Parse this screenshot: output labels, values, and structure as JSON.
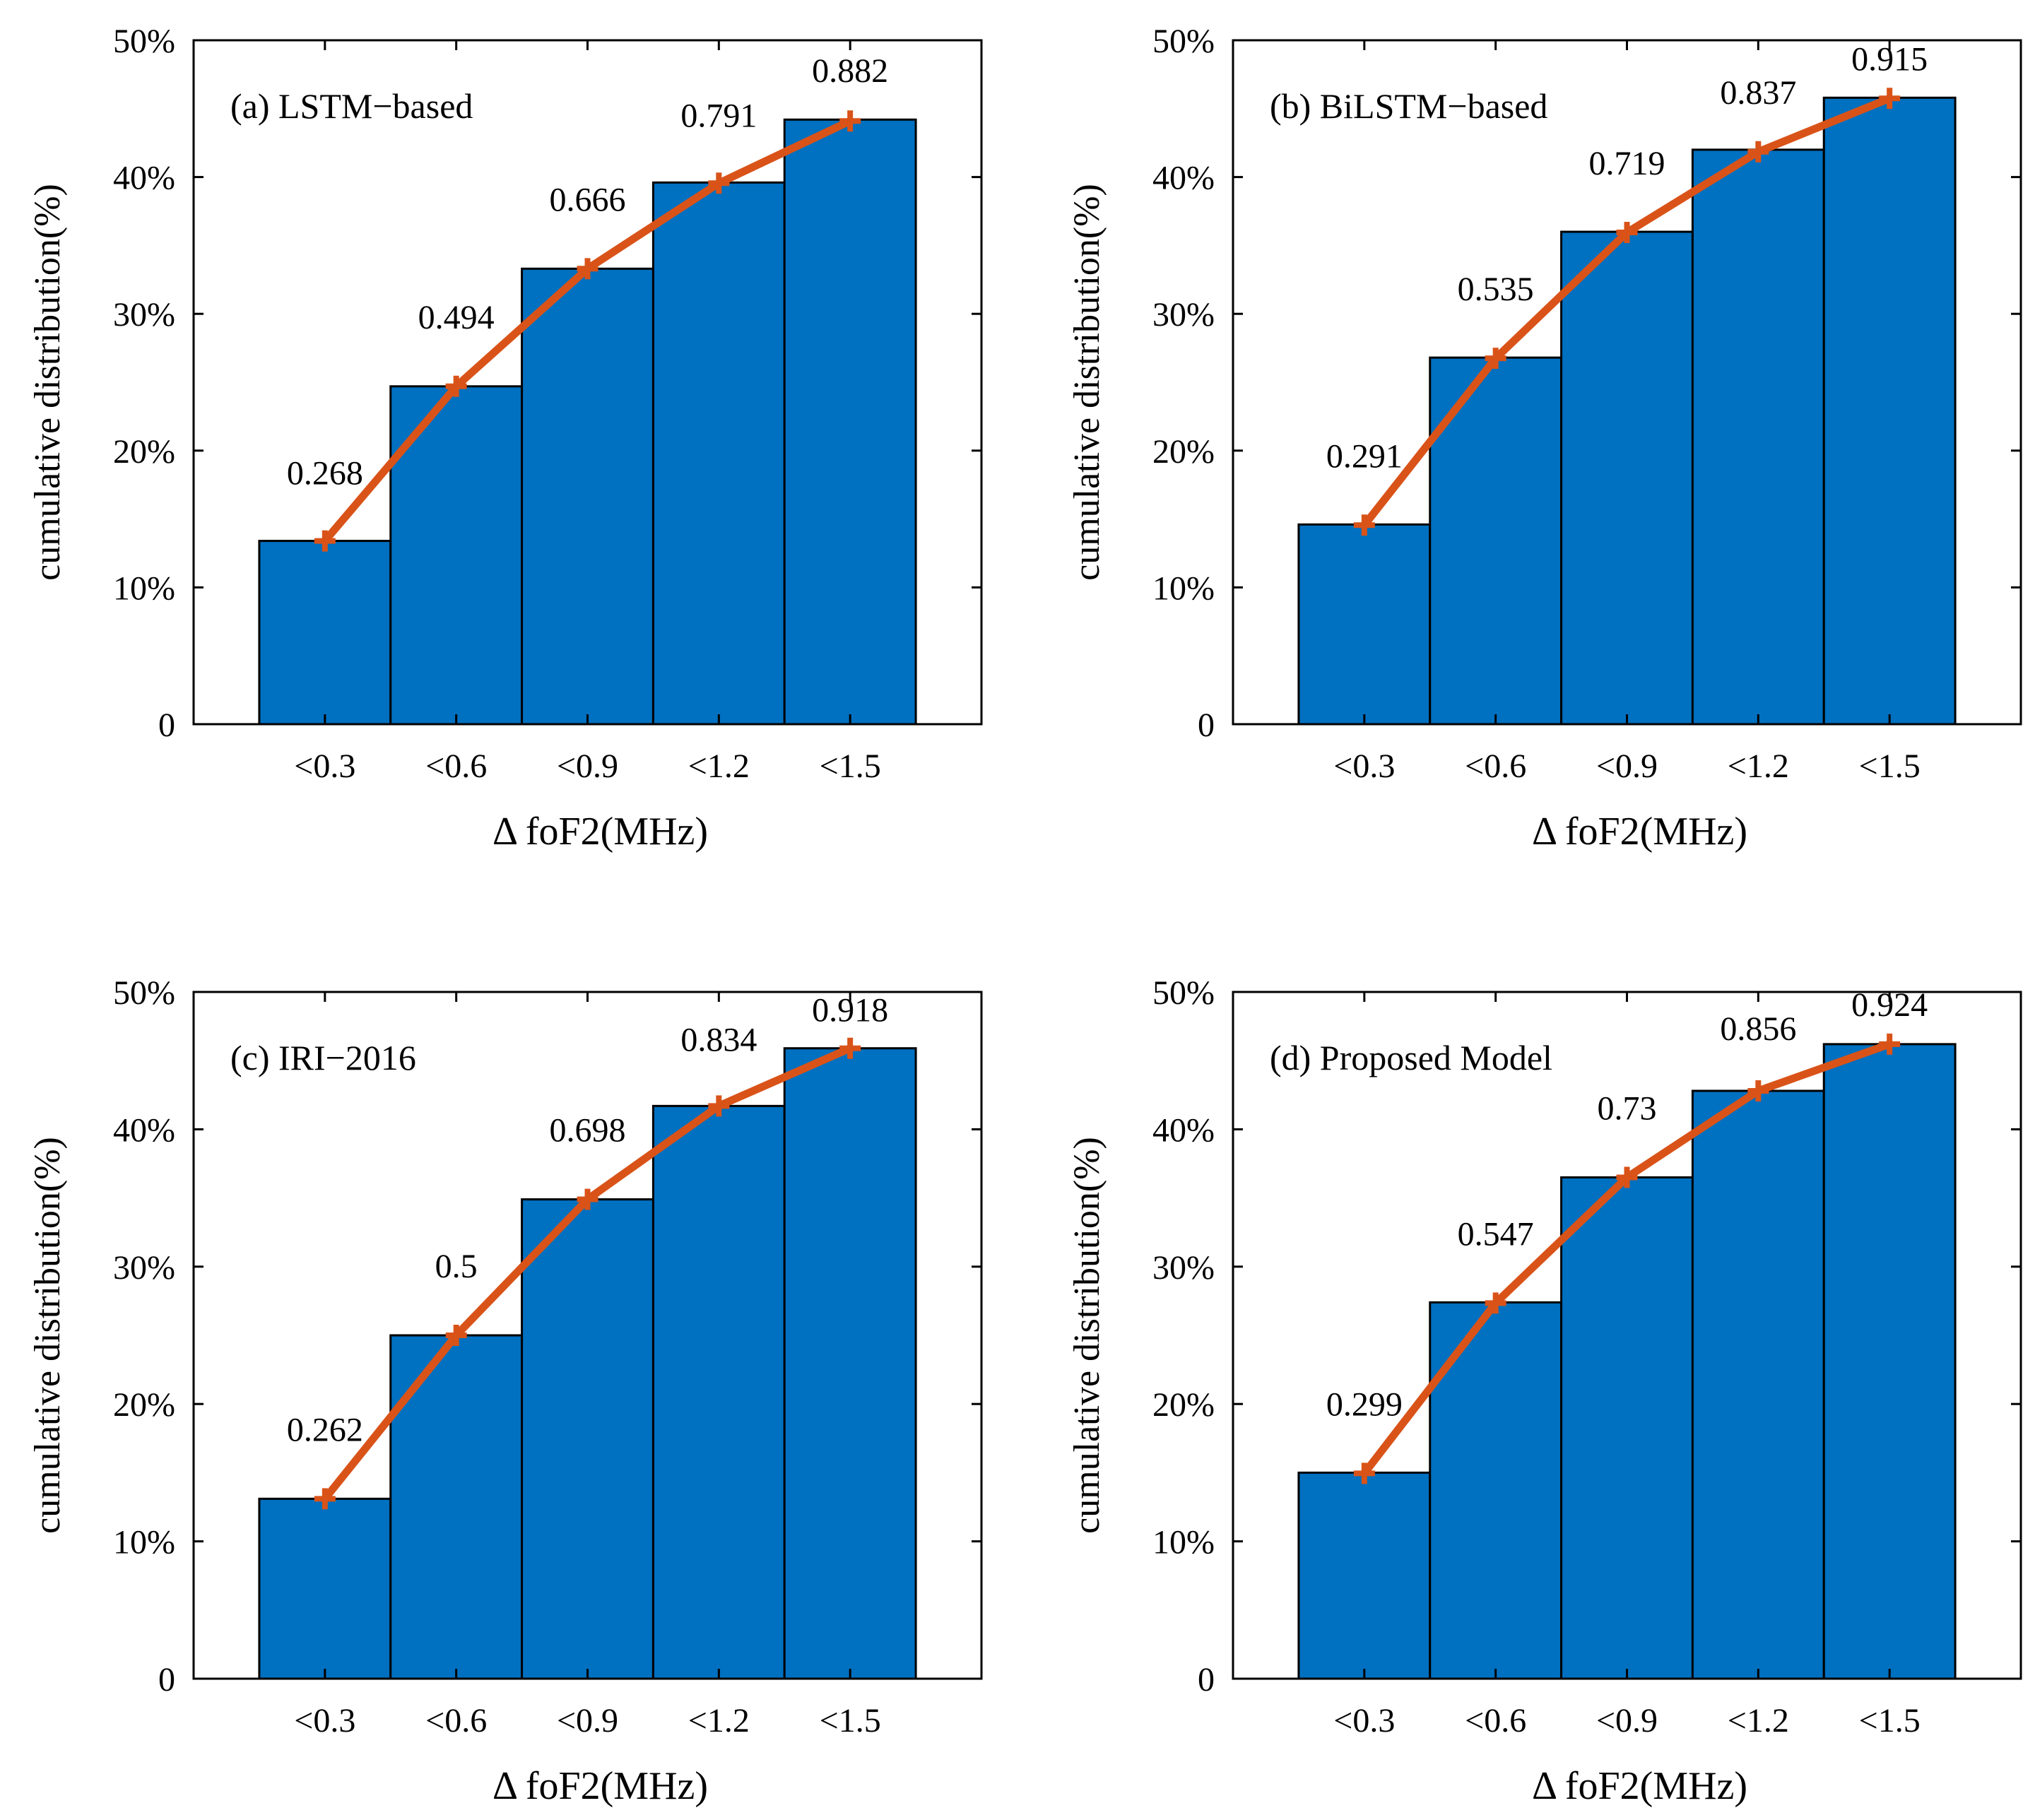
{
  "chart_data": [
    {
      "type": "bar",
      "title": "(a) LSTM−based",
      "categories": [
        "<0.3",
        "<0.6",
        "<0.9",
        "<1.2",
        "<1.5"
      ],
      "values": [
        13.4,
        24.7,
        33.3,
        39.6,
        44.2
      ],
      "series_line": {
        "name": "cumulative",
        "values": [
          13.4,
          24.7,
          33.3,
          39.55,
          44.1
        ]
      },
      "labels": [
        "0.268",
        "0.494",
        "0.666",
        "0.791",
        "0.882"
      ],
      "xlabel": "Δ foF2(MHz)",
      "ylabel": "cumulative distribution(%)",
      "ylim": [
        0,
        50
      ],
      "yticks": [
        "0",
        "10%",
        "20%",
        "30%",
        "40%",
        "50%"
      ]
    },
    {
      "type": "bar",
      "title": "(b) BiLSTM−based",
      "categories": [
        "<0.3",
        "<0.6",
        "<0.9",
        "<1.2",
        "<1.5"
      ],
      "values": [
        14.6,
        26.8,
        36.0,
        42.0,
        45.8
      ],
      "series_line": {
        "name": "cumulative",
        "values": [
          14.55,
          26.75,
          35.95,
          41.85,
          45.75
        ]
      },
      "labels": [
        "0.291",
        "0.535",
        "0.719",
        "0.837",
        "0.915"
      ],
      "xlabel": "Δ foF2(MHz)",
      "ylabel": "cumulative distribution(%)",
      "ylim": [
        0,
        50
      ],
      "yticks": [
        "0",
        "10%",
        "20%",
        "30%",
        "40%",
        "50%"
      ]
    },
    {
      "type": "bar",
      "title": "(c) IRI−2016",
      "categories": [
        "<0.3",
        "<0.6",
        "<0.9",
        "<1.2",
        "<1.5"
      ],
      "values": [
        13.1,
        25.0,
        34.9,
        41.7,
        45.9
      ],
      "series_line": {
        "name": "cumulative",
        "values": [
          13.1,
          25.0,
          34.9,
          41.7,
          45.9
        ]
      },
      "labels": [
        "0.262",
        "0.5",
        "0.698",
        "0.834",
        "0.918"
      ],
      "xlabel": "Δ foF2(MHz)",
      "ylabel": "cumulative distribution(%)",
      "ylim": [
        0,
        50
      ],
      "yticks": [
        "0",
        "10%",
        "20%",
        "30%",
        "40%",
        "50%"
      ]
    },
    {
      "type": "bar",
      "title": "(d) Proposed Model",
      "categories": [
        "<0.3",
        "<0.6",
        "<0.9",
        "<1.2",
        "<1.5"
      ],
      "values": [
        15.0,
        27.4,
        36.5,
        42.8,
        46.2
      ],
      "series_line": {
        "name": "cumulative",
        "values": [
          14.95,
          27.35,
          36.5,
          42.8,
          46.2
        ]
      },
      "labels": [
        "0.299",
        "0.547",
        "0.73",
        "0.856",
        "0.924"
      ],
      "xlabel": "Δ foF2(MHz)",
      "ylabel": "cumulative distribution(%)",
      "ylim": [
        0,
        50
      ],
      "yticks": [
        "0",
        "10%",
        "20%",
        "30%",
        "40%",
        "50%"
      ]
    }
  ],
  "colors": {
    "bar_fill": "#0070C0",
    "bar_edge": "#000000",
    "line": "#D95319"
  }
}
